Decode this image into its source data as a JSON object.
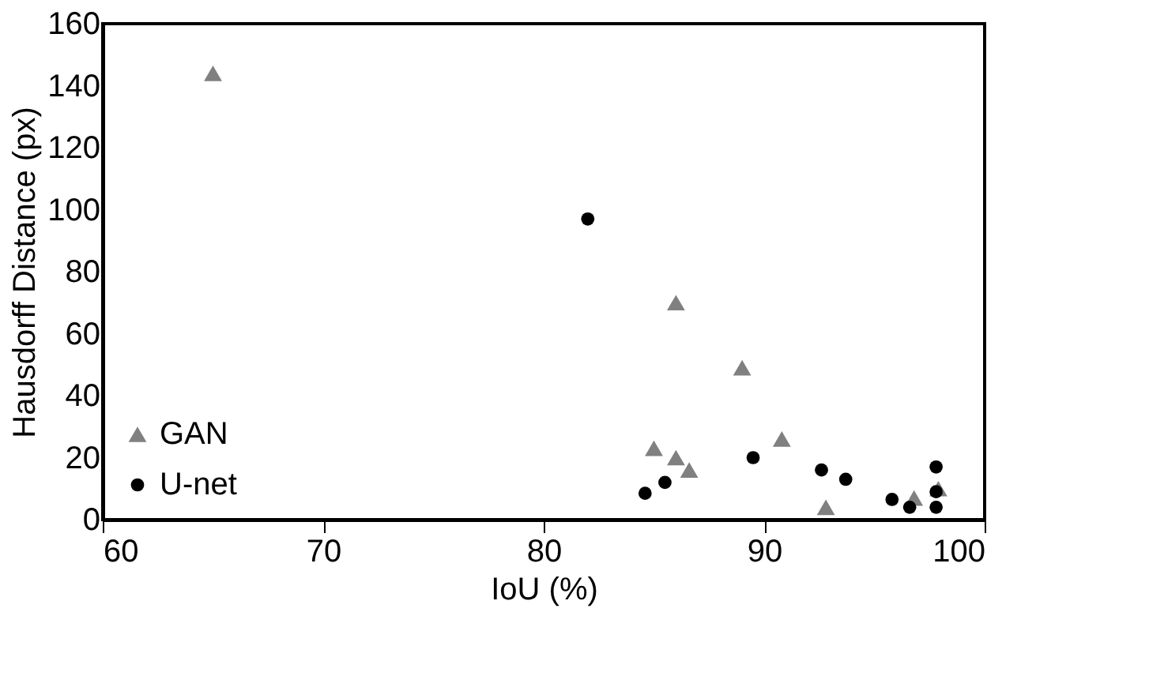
{
  "chart_data": {
    "type": "scatter",
    "xlabel": "IoU (%)",
    "ylabel": "Hausdorff Distance (px)",
    "xlim": [
      60,
      100
    ],
    "xticks": [
      60,
      70,
      80,
      90,
      100
    ],
    "ylim": [
      0,
      160
    ],
    "yticks": [
      0,
      20,
      40,
      60,
      80,
      100,
      120,
      140,
      160
    ],
    "grid": false,
    "legend": "bottom left",
    "series": [
      {
        "name": "GAN",
        "color": "#808080",
        "marker": "triangle",
        "x": [
          65,
          86,
          89,
          85,
          86,
          86.6,
          90.8,
          92.8,
          96,
          96.8,
          97.9
        ],
        "values": [
          144,
          70,
          49,
          23,
          20,
          16,
          26,
          4,
          null,
          7,
          10
        ]
      },
      {
        "name": "U-net",
        "color": "#000000",
        "marker": "circle",
        "x": [
          82,
          84.6,
          85.5,
          89.5,
          92.6,
          93.7,
          95.8,
          96.6,
          97.8,
          97.8,
          97.8
        ],
        "values": [
          97,
          8.5,
          12,
          20,
          16,
          13,
          6.5,
          4,
          17,
          9,
          4
        ]
      }
    ]
  }
}
